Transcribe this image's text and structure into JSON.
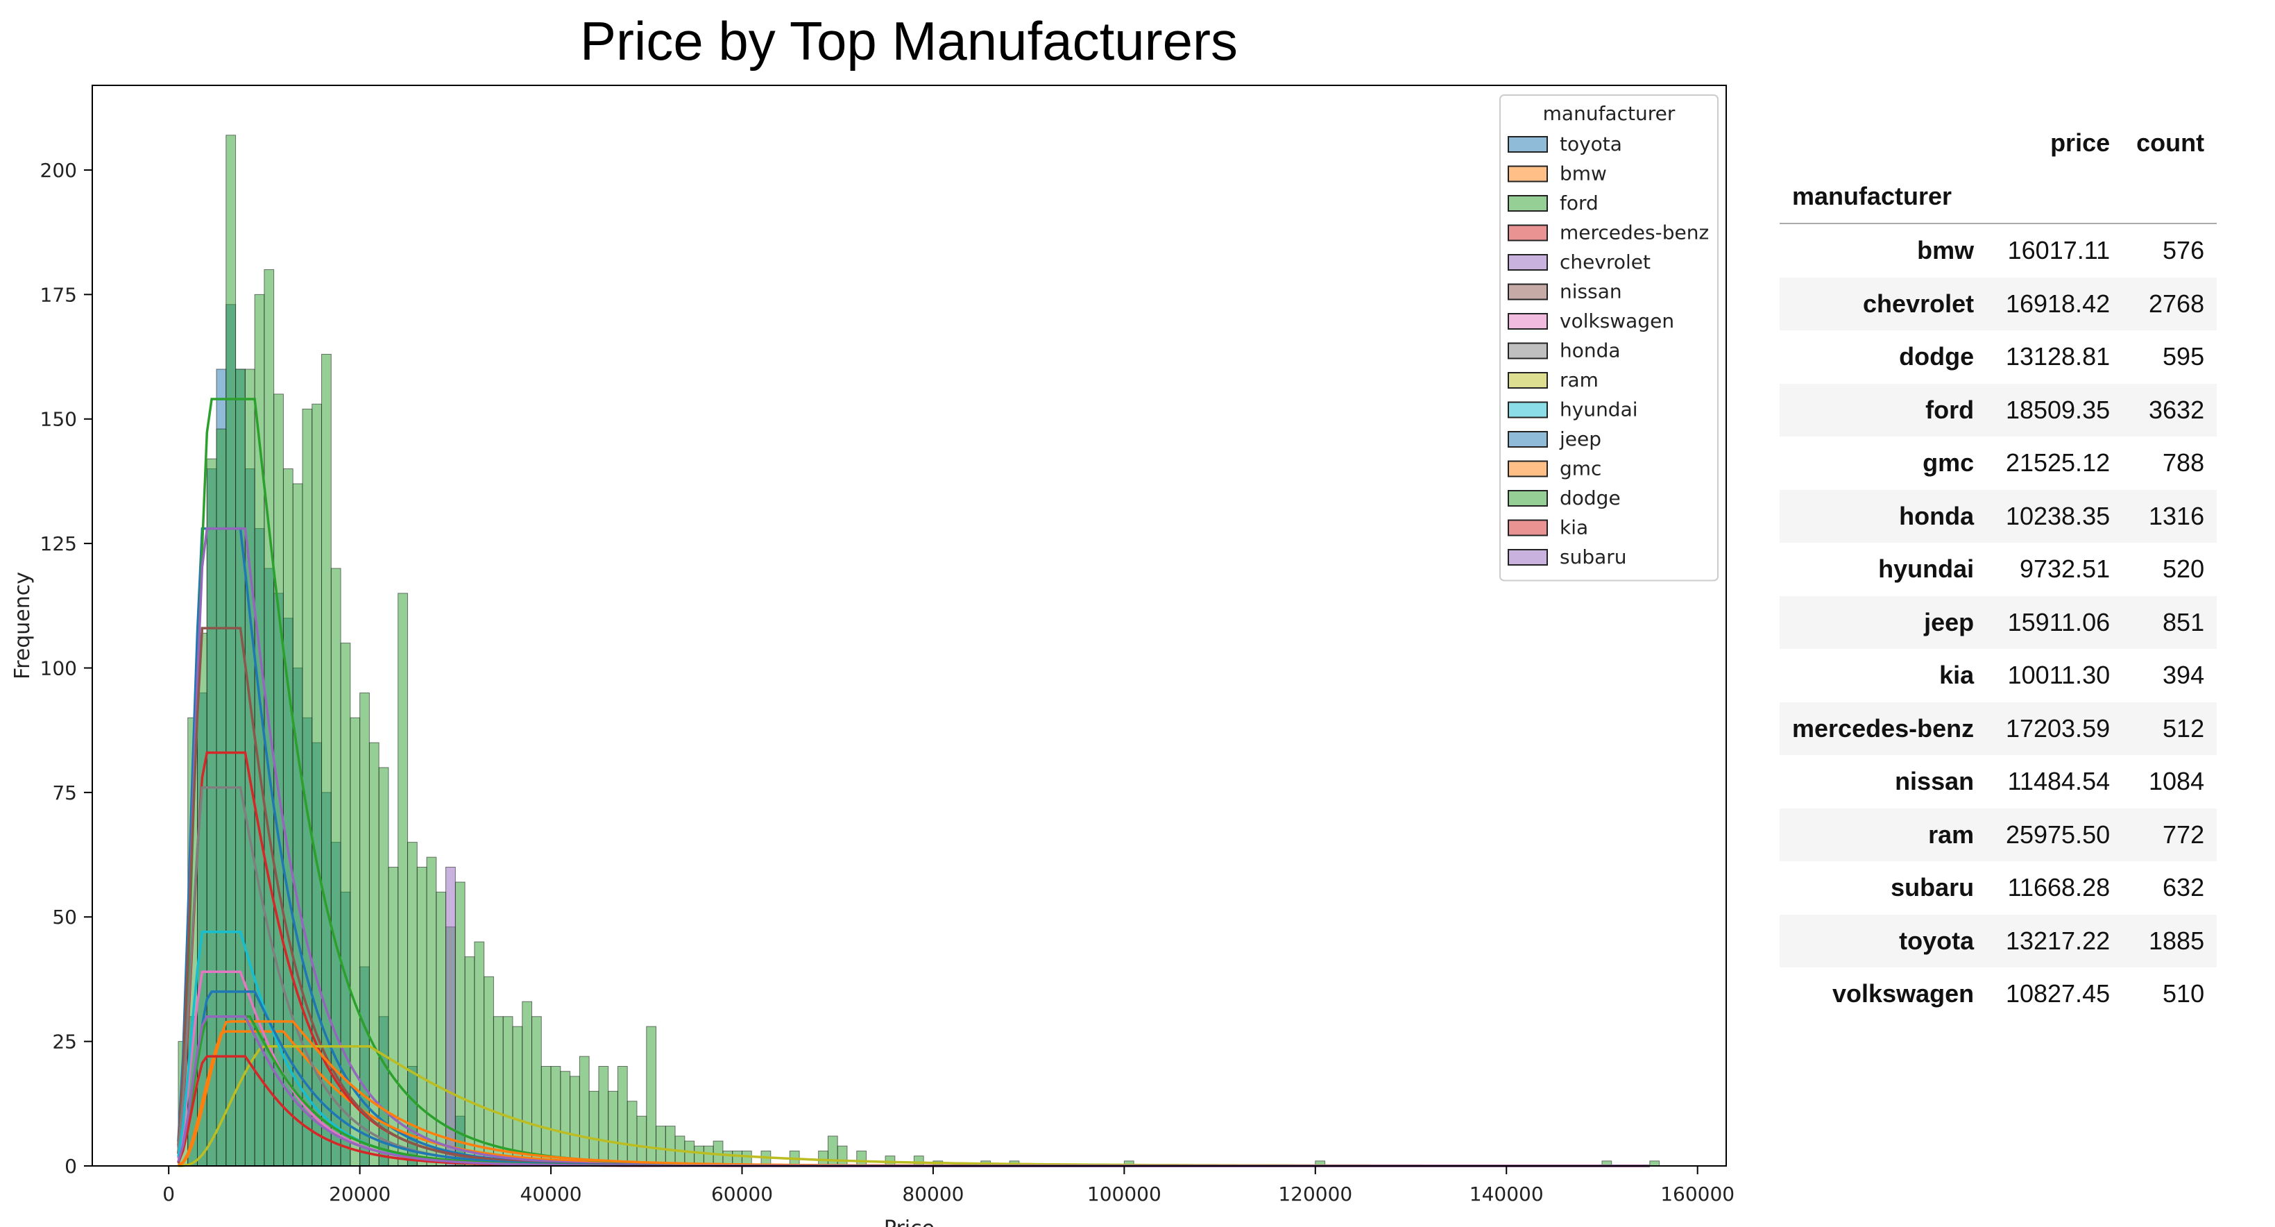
{
  "chart_data": {
    "type": "histogram",
    "title": "Price by Top Manufacturers",
    "xlabel": "Price",
    "ylabel": "Frequency",
    "xlim": [
      -8000,
      163000
    ],
    "ylim": [
      0,
      217
    ],
    "xticks": [
      0,
      20000,
      40000,
      60000,
      80000,
      100000,
      120000,
      140000,
      160000
    ],
    "yticks": [
      0,
      25,
      50,
      75,
      100,
      125,
      150,
      175,
      200
    ],
    "bin_width": 1000,
    "kde": true,
    "legend": {
      "title": "manufacturer",
      "placement": "top-right",
      "entries": [
        "toyota",
        "bmw",
        "ford",
        "mercedes-benz",
        "chevrolet",
        "nissan",
        "volkswagen",
        "honda",
        "ram",
        "hyundai",
        "jeep",
        "gmc",
        "dodge",
        "kia",
        "subaru"
      ]
    },
    "series": [
      {
        "name": "toyota",
        "color": "#1f77b4",
        "kde_peak_x": 7500,
        "kde_peak_y": 128,
        "x": [
          2000,
          3000,
          4000,
          5000,
          6000,
          7000,
          8000,
          9000,
          10000,
          11000,
          12000,
          13000,
          14000,
          15000,
          16000,
          17000,
          18000,
          20000,
          22000,
          25000,
          30000
        ],
        "y": [
          30,
          95,
          140,
          160,
          173,
          160,
          140,
          128,
          120,
          115,
          110,
          100,
          90,
          85,
          75,
          65,
          55,
          40,
          30,
          20,
          10
        ]
      },
      {
        "name": "bmw",
        "color": "#ff7f0e",
        "kde_peak_x": 12000,
        "kde_peak_y": 27,
        "x": [],
        "y": []
      },
      {
        "name": "ford",
        "color": "#2ca02c",
        "kde_peak_x": 9000,
        "kde_peak_y": 154,
        "x": [
          1000,
          2000,
          3000,
          4000,
          5000,
          6000,
          7000,
          8000,
          9000,
          10000,
          11000,
          12000,
          13000,
          14000,
          15000,
          16000,
          17000,
          18000,
          19000,
          20000,
          21000,
          22000,
          23000,
          24000,
          25000,
          26000,
          27000,
          28000,
          29000,
          30000,
          31000,
          32000,
          33000,
          34000,
          35000,
          36000,
          37000,
          38000,
          39000,
          40000,
          41000,
          42000,
          43000,
          44000,
          45000,
          46000,
          47000,
          48000,
          49000,
          50000,
          51000,
          52000,
          53000,
          54000,
          55000,
          56000,
          57000,
          58000,
          59000,
          60000,
          62000,
          65000,
          68000,
          69000,
          70000,
          72000,
          75000,
          78000,
          80000,
          85000,
          88000,
          100000,
          120000,
          150000,
          155000
        ],
        "y": [
          25,
          90,
          107,
          142,
          148,
          207,
          160,
          160,
          175,
          180,
          155,
          140,
          137,
          152,
          153,
          163,
          120,
          105,
          90,
          95,
          85,
          80,
          60,
          115,
          65,
          60,
          62,
          55,
          48,
          57,
          42,
          45,
          38,
          30,
          30,
          28,
          33,
          30,
          20,
          20,
          19,
          18,
          22,
          15,
          20,
          15,
          20,
          13,
          10,
          28,
          8,
          8,
          6,
          5,
          4,
          4,
          5,
          3,
          3,
          3,
          3,
          3,
          3,
          6,
          4,
          3,
          2,
          2,
          1,
          1,
          1,
          1,
          1,
          1,
          1
        ]
      },
      {
        "name": "mercedes-benz",
        "color": "#d62728",
        "kde_peak_x": 8000,
        "kde_peak_y": 83,
        "x": [],
        "y": []
      },
      {
        "name": "chevrolet",
        "color": "#9467bd",
        "kde_peak_x": 8000,
        "kde_peak_y": 128,
        "x": [
          29000
        ],
        "y": [
          60
        ]
      },
      {
        "name": "nissan",
        "color": "#8c564b",
        "kde_peak_x": 7500,
        "kde_peak_y": 108,
        "x": [],
        "y": []
      },
      {
        "name": "volkswagen",
        "color": "#e377c2",
        "kde_peak_x": 7500,
        "kde_peak_y": 39,
        "x": [],
        "y": []
      },
      {
        "name": "honda",
        "color": "#7f7f7f",
        "kde_peak_x": 7500,
        "kde_peak_y": 76,
        "x": [],
        "y": []
      },
      {
        "name": "ram",
        "color": "#bcbd22",
        "kde_peak_x": 21000,
        "kde_peak_y": 24,
        "x": [],
        "y": []
      },
      {
        "name": "hyundai",
        "color": "#17becf",
        "kde_peak_x": 7500,
        "kde_peak_y": 47,
        "x": [],
        "y": []
      },
      {
        "name": "jeep",
        "color": "#1f77b4",
        "kde_peak_x": 9000,
        "kde_peak_y": 35,
        "x": [],
        "y": []
      },
      {
        "name": "gmc",
        "color": "#ff7f0e",
        "kde_peak_x": 13000,
        "kde_peak_y": 29,
        "x": [],
        "y": []
      },
      {
        "name": "dodge",
        "color": "#2ca02c",
        "kde_peak_x": 8500,
        "kde_peak_y": 30,
        "x": [],
        "y": []
      },
      {
        "name": "kia",
        "color": "#d62728",
        "kde_peak_x": 8000,
        "kde_peak_y": 22,
        "x": [],
        "y": []
      },
      {
        "name": "subaru",
        "color": "#9467bd",
        "kde_peak_x": 8000,
        "kde_peak_y": 30,
        "x": [],
        "y": []
      }
    ]
  },
  "table": {
    "columns": [
      "price",
      "count"
    ],
    "index_name": "manufacturer",
    "rows": [
      {
        "manufacturer": "bmw",
        "price": "16017.11",
        "count": "576"
      },
      {
        "manufacturer": "chevrolet",
        "price": "16918.42",
        "count": "2768"
      },
      {
        "manufacturer": "dodge",
        "price": "13128.81",
        "count": "595"
      },
      {
        "manufacturer": "ford",
        "price": "18509.35",
        "count": "3632"
      },
      {
        "manufacturer": "gmc",
        "price": "21525.12",
        "count": "788"
      },
      {
        "manufacturer": "honda",
        "price": "10238.35",
        "count": "1316"
      },
      {
        "manufacturer": "hyundai",
        "price": "9732.51",
        "count": "520"
      },
      {
        "manufacturer": "jeep",
        "price": "15911.06",
        "count": "851"
      },
      {
        "manufacturer": "kia",
        "price": "10011.30",
        "count": "394"
      },
      {
        "manufacturer": "mercedes-benz",
        "price": "17203.59",
        "count": "512"
      },
      {
        "manufacturer": "nissan",
        "price": "11484.54",
        "count": "1084"
      },
      {
        "manufacturer": "ram",
        "price": "25975.50",
        "count": "772"
      },
      {
        "manufacturer": "subaru",
        "price": "11668.28",
        "count": "632"
      },
      {
        "manufacturer": "toyota",
        "price": "13217.22",
        "count": "1885"
      },
      {
        "manufacturer": "volkswagen",
        "price": "10827.45",
        "count": "510"
      }
    ]
  }
}
